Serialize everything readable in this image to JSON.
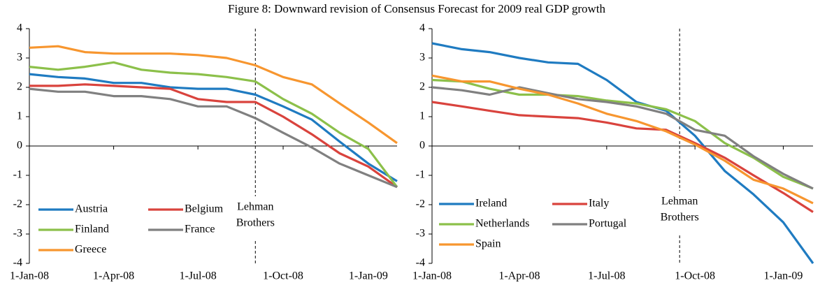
{
  "title": "Figure 8:  Downward revision of Consensus Forecast for 2009 real GDP growth",
  "chart_data": [
    {
      "type": "line",
      "x": [
        "2008-01-01",
        "2008-02-01",
        "2008-03-01",
        "2008-04-01",
        "2008-05-01",
        "2008-06-01",
        "2008-07-01",
        "2008-08-01",
        "2008-09-01",
        "2008-10-01",
        "2008-11-01",
        "2008-12-01",
        "2009-01-01",
        "2009-02-01"
      ],
      "xlim": [
        "2008-01-01",
        "2009-02-01"
      ],
      "xticks": [
        {
          "value": "2008-01-01",
          "label": "1-Jan-08"
        },
        {
          "value": "2008-04-01",
          "label": "1-Apr-08"
        },
        {
          "value": "2008-07-01",
          "label": "1-Jul-08"
        },
        {
          "value": "2008-10-01",
          "label": "1-Oct-08"
        },
        {
          "value": "2009-01-01",
          "label": "1-Jan-09"
        }
      ],
      "ylim": [
        -4,
        4
      ],
      "yticks": [
        -4,
        -3,
        -2,
        -1,
        0,
        1,
        2,
        3,
        4
      ],
      "legend": "lower left",
      "annotation": {
        "lines": [
          "Lehman",
          "Brothers"
        ],
        "x": "2008-09-01"
      },
      "series": [
        {
          "name": "Austria",
          "color": "#1f7bc1",
          "values": [
            2.45,
            2.35,
            2.3,
            2.15,
            2.15,
            2.0,
            1.95,
            1.95,
            1.75,
            1.35,
            0.9,
            0.15,
            -0.6,
            -1.2
          ]
        },
        {
          "name": "Belgium",
          "color": "#d9433d",
          "values": [
            2.05,
            2.05,
            2.1,
            2.05,
            2.0,
            1.95,
            1.6,
            1.5,
            1.5,
            1.0,
            0.4,
            -0.25,
            -0.7,
            -1.4
          ]
        },
        {
          "name": "Finland",
          "color": "#8cc04a",
          "values": [
            2.7,
            2.6,
            2.7,
            2.85,
            2.6,
            2.5,
            2.45,
            2.35,
            2.2,
            1.6,
            1.1,
            0.45,
            -0.1,
            -1.4
          ]
        },
        {
          "name": "France",
          "color": "#808080",
          "values": [
            1.95,
            1.85,
            1.85,
            1.7,
            1.7,
            1.6,
            1.35,
            1.35,
            0.95,
            0.45,
            -0.05,
            -0.6,
            -1.0,
            -1.4
          ]
        },
        {
          "name": "Greece",
          "color": "#f7962f",
          "values": [
            3.35,
            3.4,
            3.2,
            3.15,
            3.15,
            3.15,
            3.1,
            3.0,
            2.75,
            2.35,
            2.1,
            1.45,
            0.8,
            0.1
          ]
        }
      ]
    },
    {
      "type": "line",
      "x": [
        "2008-01-01",
        "2008-02-01",
        "2008-03-01",
        "2008-04-01",
        "2008-05-01",
        "2008-06-01",
        "2008-07-01",
        "2008-08-01",
        "2008-09-01",
        "2008-10-01",
        "2008-11-01",
        "2008-12-01",
        "2009-01-01",
        "2009-02-01"
      ],
      "xlim": [
        "2008-01-01",
        "2009-02-01"
      ],
      "xticks": [
        {
          "value": "2008-01-01",
          "label": "1-Jan-08"
        },
        {
          "value": "2008-04-01",
          "label": "1-Apr-08"
        },
        {
          "value": "2008-07-01",
          "label": "1-Jul-08"
        },
        {
          "value": "2008-10-01",
          "label": "1-Oct-08"
        },
        {
          "value": "2009-01-01",
          "label": "1-Jan-09"
        }
      ],
      "ylim": [
        -4,
        4
      ],
      "yticks": [
        -4,
        -3,
        -2,
        -1,
        0,
        1,
        2,
        3,
        4
      ],
      "legend": "lower left",
      "annotation": {
        "lines": [
          "Lehman",
          "Brothers"
        ],
        "x": "2008-09-15"
      },
      "series": [
        {
          "name": "Ireland",
          "color": "#1f7bc1",
          "values": [
            3.5,
            3.3,
            3.2,
            3.0,
            2.85,
            2.8,
            2.25,
            1.5,
            1.2,
            0.35,
            -0.85,
            -1.65,
            -2.6,
            -4.0
          ]
        },
        {
          "name": "Italy",
          "color": "#d9433d",
          "values": [
            1.5,
            1.35,
            1.2,
            1.05,
            1.0,
            0.95,
            0.8,
            0.6,
            0.55,
            0.1,
            -0.4,
            -1.0,
            -1.6,
            -2.25
          ]
        },
        {
          "name": "Netherlands",
          "color": "#8cc04a",
          "values": [
            2.25,
            2.2,
            1.95,
            1.75,
            1.75,
            1.7,
            1.55,
            1.45,
            1.25,
            0.85,
            0.1,
            -0.4,
            -1.05,
            -1.45
          ]
        },
        {
          "name": "Portugal",
          "color": "#808080",
          "values": [
            2.0,
            1.9,
            1.75,
            2.0,
            1.8,
            1.6,
            1.5,
            1.35,
            1.1,
            0.55,
            0.35,
            -0.35,
            -0.95,
            -1.45
          ]
        },
        {
          "name": "Spain",
          "color": "#f7962f",
          "values": [
            2.4,
            2.2,
            2.2,
            1.95,
            1.75,
            1.45,
            1.1,
            0.85,
            0.5,
            0.05,
            -0.5,
            -1.15,
            -1.45,
            -1.95
          ]
        }
      ]
    }
  ]
}
